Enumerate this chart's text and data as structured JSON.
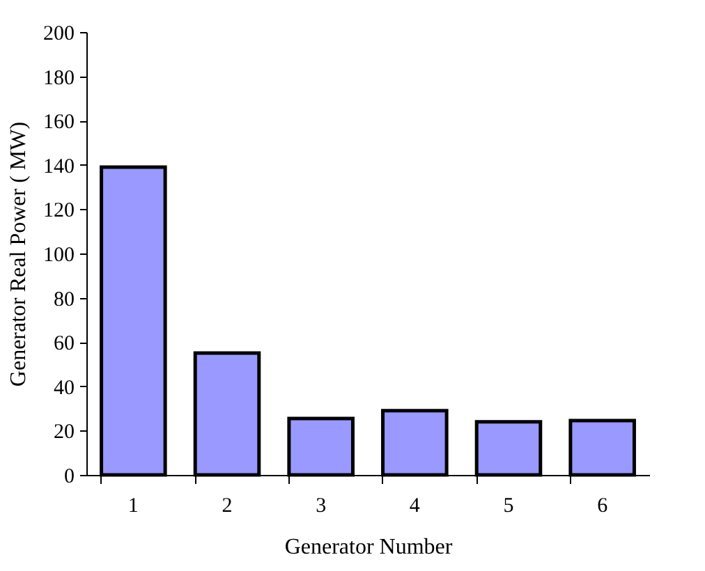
{
  "chart_data": {
    "type": "bar",
    "xlabel": "Generator Number",
    "ylabel": "Generator Real Power ( MW)",
    "categories": [
      "1",
      "2",
      "3",
      "4",
      "5",
      "6"
    ],
    "values": [
      139,
      55,
      25.5,
      29,
      24,
      24.5
    ],
    "color": "#9999ff",
    "ylim": [
      0,
      200
    ],
    "yticks": [
      0,
      20,
      40,
      60,
      80,
      100,
      120,
      140,
      160,
      180,
      200
    ],
    "grid": false,
    "legend": false
  }
}
